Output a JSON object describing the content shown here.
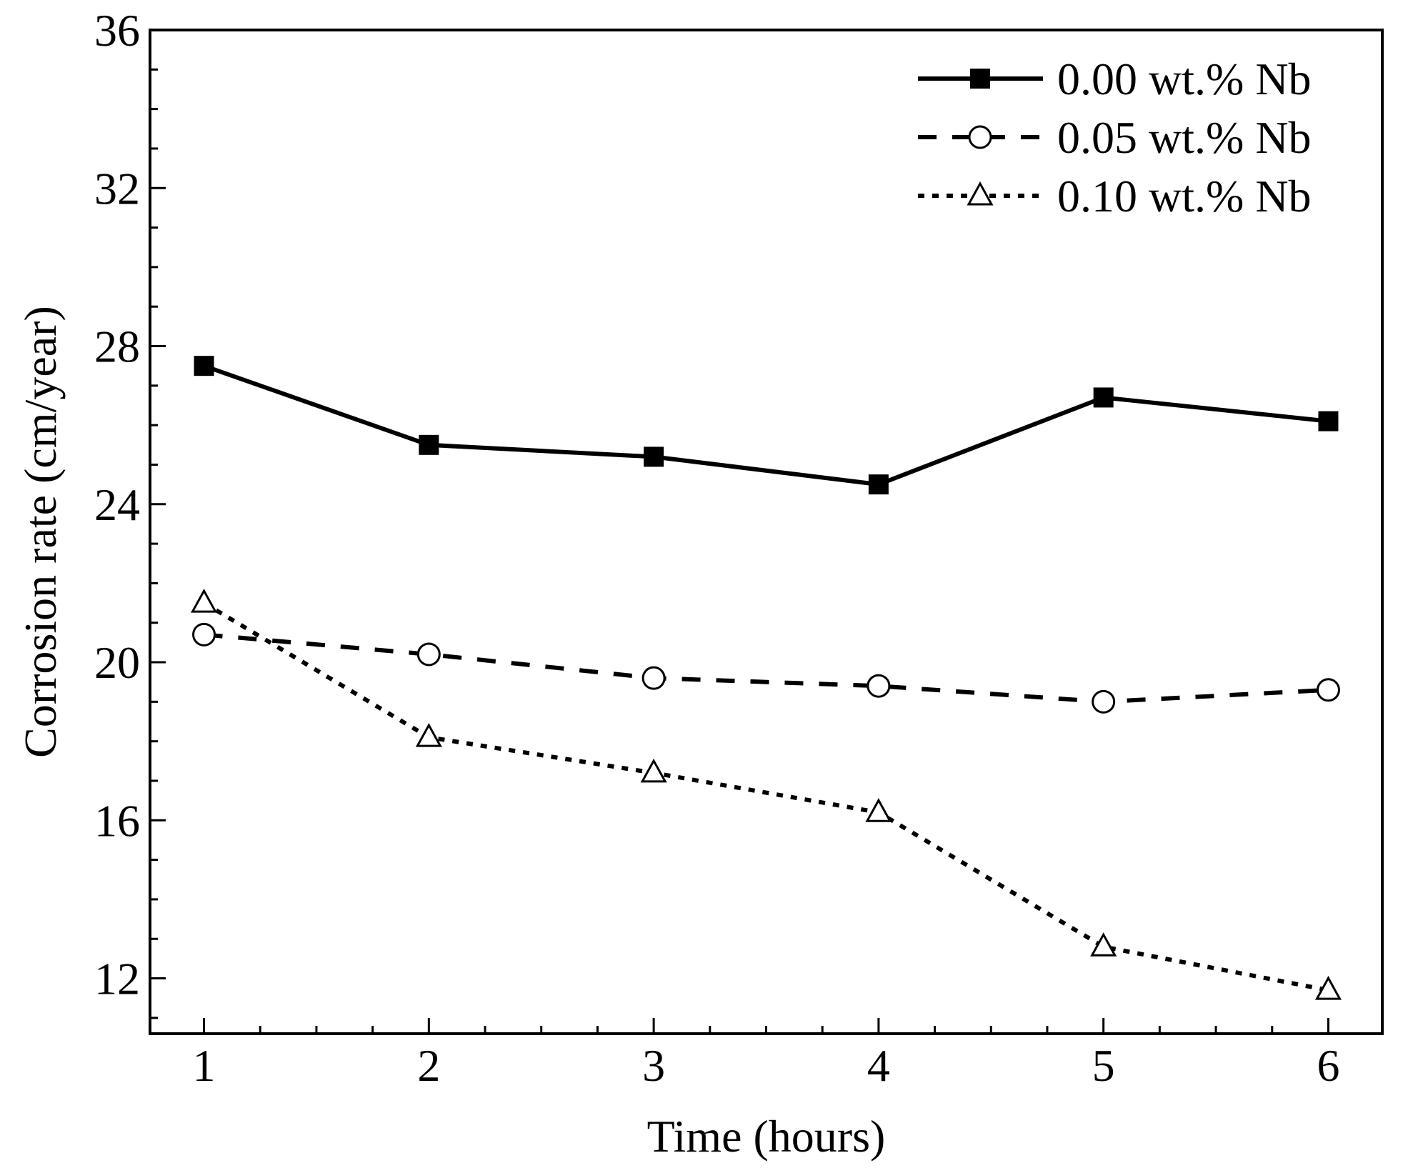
{
  "chart_data": {
    "type": "line",
    "title": "",
    "xlabel": "Time (hours)",
    "ylabel": "Corrosion rate (cm/year)",
    "x": [
      1,
      2,
      3,
      4,
      5,
      6
    ],
    "xlim": [
      0.76,
      6.24
    ],
    "ylim": [
      10.6,
      36
    ],
    "x_ticks": [
      1,
      2,
      3,
      4,
      5,
      6
    ],
    "y_ticks": [
      12,
      16,
      20,
      24,
      28,
      32,
      36
    ],
    "grid": false,
    "legend_position": "top-right",
    "series": [
      {
        "name": "0.00 wt.% Nb",
        "values": [
          27.5,
          25.5,
          25.2,
          24.5,
          26.7,
          26.1
        ],
        "line_style": "solid",
        "marker": "filled-square",
        "color": "#000000"
      },
      {
        "name": "0.05 wt.% Nb",
        "values": [
          20.7,
          20.2,
          19.6,
          19.4,
          19.0,
          19.3
        ],
        "line_style": "dashed",
        "marker": "open-circle",
        "color": "#000000"
      },
      {
        "name": "0.10 wt.% Nb",
        "values": [
          21.5,
          18.1,
          17.2,
          16.2,
          12.8,
          11.7
        ],
        "line_style": "dotted",
        "marker": "open-triangle",
        "color": "#000000"
      }
    ]
  }
}
